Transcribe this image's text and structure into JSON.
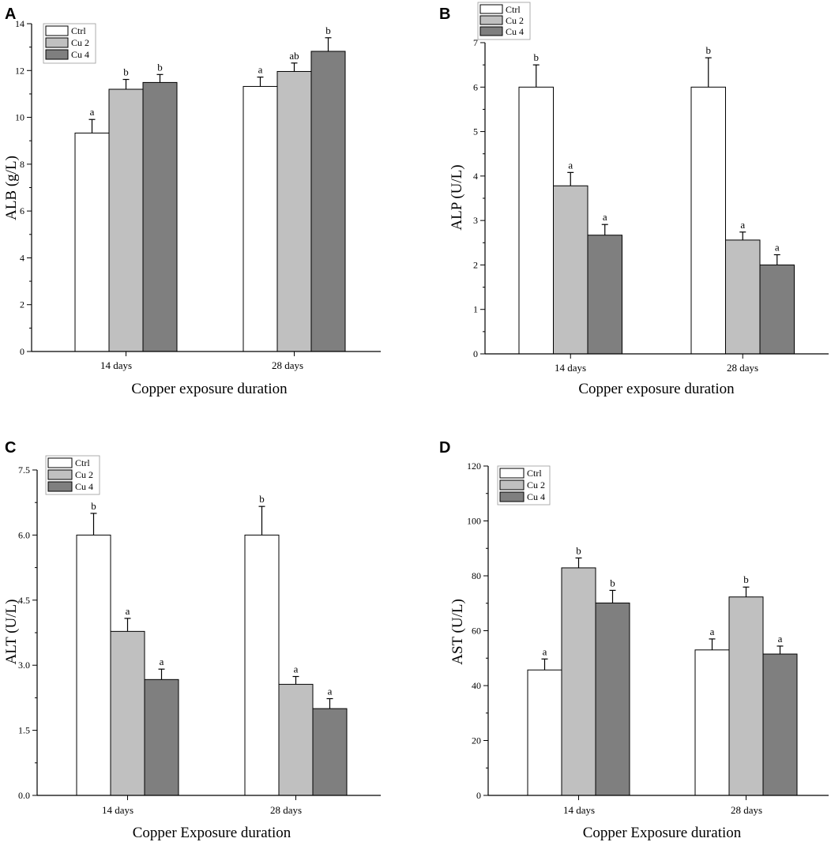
{
  "figure": {
    "series_colors": {
      "Ctrl": "#ffffff",
      "Cu 2": "#c0c0c0",
      "Cu 4": "#7f7f7f"
    }
  },
  "chart_data": [
    {
      "panel": "A",
      "type": "bar",
      "categories": [
        "14 days",
        "28 days"
      ],
      "series": [
        {
          "name": "Ctrl",
          "values": [
            9.33,
            11.32
          ],
          "errors": [
            0.58,
            0.4
          ],
          "labels": [
            "a",
            "a"
          ]
        },
        {
          "name": "Cu 2",
          "values": [
            11.2,
            11.96
          ],
          "errors": [
            0.42,
            0.36
          ],
          "labels": [
            "b",
            "ab"
          ]
        },
        {
          "name": "Cu 4",
          "values": [
            11.49,
            12.82
          ],
          "errors": [
            0.34,
            0.58
          ],
          "labels": [
            "b",
            "b"
          ]
        }
      ],
      "xlabel": "Copper exposure duration",
      "ylabel": "ALB (g/L)",
      "ylim": [
        0,
        14
      ],
      "yticks": [
        0,
        2,
        4,
        6,
        8,
        10,
        12,
        14
      ],
      "ytick_labels": [
        "0",
        "2",
        "4",
        "6",
        "8",
        "10",
        "12",
        "14"
      ],
      "legend": "top-left"
    },
    {
      "panel": "B",
      "type": "bar",
      "categories": [
        "14 days",
        "28 days"
      ],
      "series": [
        {
          "name": "Ctrl",
          "values": [
            6.0,
            6.0
          ],
          "errors": [
            0.5,
            0.66
          ],
          "labels": [
            "b",
            "b"
          ]
        },
        {
          "name": "Cu 2",
          "values": [
            3.78,
            2.56
          ],
          "errors": [
            0.3,
            0.18
          ],
          "labels": [
            "a",
            "a"
          ]
        },
        {
          "name": "Cu 4",
          "values": [
            2.67,
            2.0
          ],
          "errors": [
            0.24,
            0.23
          ],
          "labels": [
            "a",
            "a"
          ]
        }
      ],
      "xlabel": "Copper exposure duration",
      "ylabel": "ALP (U/L)",
      "ylim": [
        0,
        7
      ],
      "yticks": [
        0,
        1,
        2,
        3,
        4,
        5,
        6,
        7
      ],
      "ytick_labels": [
        "0",
        "1",
        "2",
        "3",
        "4",
        "5",
        "6",
        "7"
      ],
      "legend": "top-left"
    },
    {
      "panel": "C",
      "type": "bar",
      "categories": [
        "14 days",
        "28 days"
      ],
      "series": [
        {
          "name": "Ctrl",
          "values": [
            6.0,
            6.0
          ],
          "errors": [
            0.5,
            0.66
          ],
          "labels": [
            "b",
            "b"
          ]
        },
        {
          "name": "Cu 2",
          "values": [
            3.78,
            2.56
          ],
          "errors": [
            0.3,
            0.18
          ],
          "labels": [
            "a",
            "a"
          ]
        },
        {
          "name": "Cu 4",
          "values": [
            2.67,
            2.0
          ],
          "errors": [
            0.24,
            0.23
          ],
          "labels": [
            "a",
            "a"
          ]
        }
      ],
      "xlabel": "Copper Exposure duration",
      "ylabel": "ALT (U/L)",
      "ylim": [
        0,
        7.5
      ],
      "yticks": [
        0,
        1.5,
        3,
        4.5,
        6,
        7.5
      ],
      "ytick_labels": [
        "0.0",
        "1.5",
        "3.0",
        "4.5",
        "6.0",
        "7.5"
      ],
      "legend": "top-left"
    },
    {
      "panel": "D",
      "type": "bar",
      "categories": [
        "14 days",
        "28 days"
      ],
      "series": [
        {
          "name": "Ctrl",
          "values": [
            45.7,
            53.0
          ],
          "errors": [
            4.0,
            4.0
          ],
          "labels": [
            "a",
            "a"
          ]
        },
        {
          "name": "Cu 2",
          "values": [
            82.9,
            72.3
          ],
          "errors": [
            3.6,
            3.6
          ],
          "labels": [
            "b",
            "b"
          ]
        },
        {
          "name": "Cu 4",
          "values": [
            70.1,
            51.5
          ],
          "errors": [
            4.6,
            2.9
          ],
          "labels": [
            "b",
            "a"
          ]
        }
      ],
      "xlabel": "Copper Exposure duration",
      "ylabel": "AST (U/L)",
      "ylim": [
        0,
        120
      ],
      "yticks": [
        0,
        20,
        40,
        60,
        80,
        100,
        120
      ],
      "ytick_labels": [
        "0",
        "20",
        "40",
        "60",
        "80",
        "100",
        "120"
      ],
      "legend": "top-left"
    }
  ]
}
